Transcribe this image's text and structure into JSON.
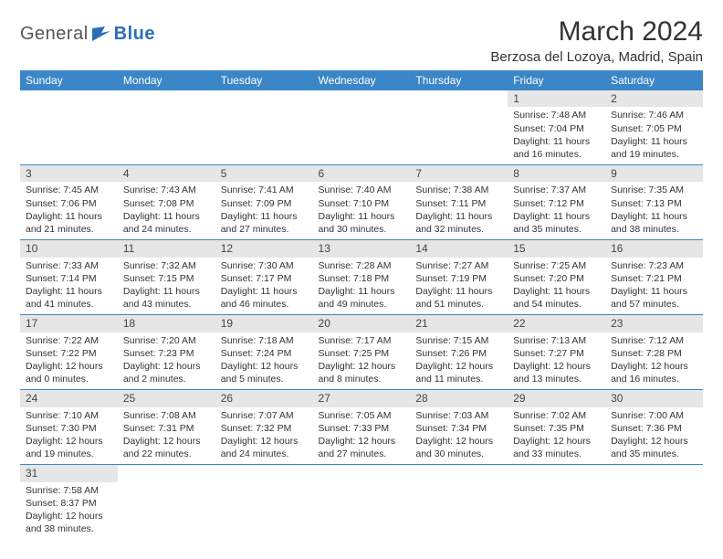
{
  "logo": {
    "part1": "General",
    "part2": "Blue"
  },
  "title": "March 2024",
  "location": "Berzosa del Lozoya, Madrid, Spain",
  "colors": {
    "header_bg": "#3b86c7",
    "header_text": "#ffffff",
    "daynum_bg": "#e6e6e6",
    "border": "#3b86c7",
    "logo_gray": "#555555",
    "logo_blue": "#2a6fb5"
  },
  "weekdays": [
    "Sunday",
    "Monday",
    "Tuesday",
    "Wednesday",
    "Thursday",
    "Friday",
    "Saturday"
  ],
  "weeks": [
    [
      null,
      null,
      null,
      null,
      null,
      {
        "n": "1",
        "sr": "Sunrise: 7:48 AM",
        "ss": "Sunset: 7:04 PM",
        "dl": "Daylight: 11 hours and 16 minutes."
      },
      {
        "n": "2",
        "sr": "Sunrise: 7:46 AM",
        "ss": "Sunset: 7:05 PM",
        "dl": "Daylight: 11 hours and 19 minutes."
      }
    ],
    [
      {
        "n": "3",
        "sr": "Sunrise: 7:45 AM",
        "ss": "Sunset: 7:06 PM",
        "dl": "Daylight: 11 hours and 21 minutes."
      },
      {
        "n": "4",
        "sr": "Sunrise: 7:43 AM",
        "ss": "Sunset: 7:08 PM",
        "dl": "Daylight: 11 hours and 24 minutes."
      },
      {
        "n": "5",
        "sr": "Sunrise: 7:41 AM",
        "ss": "Sunset: 7:09 PM",
        "dl": "Daylight: 11 hours and 27 minutes."
      },
      {
        "n": "6",
        "sr": "Sunrise: 7:40 AM",
        "ss": "Sunset: 7:10 PM",
        "dl": "Daylight: 11 hours and 30 minutes."
      },
      {
        "n": "7",
        "sr": "Sunrise: 7:38 AM",
        "ss": "Sunset: 7:11 PM",
        "dl": "Daylight: 11 hours and 32 minutes."
      },
      {
        "n": "8",
        "sr": "Sunrise: 7:37 AM",
        "ss": "Sunset: 7:12 PM",
        "dl": "Daylight: 11 hours and 35 minutes."
      },
      {
        "n": "9",
        "sr": "Sunrise: 7:35 AM",
        "ss": "Sunset: 7:13 PM",
        "dl": "Daylight: 11 hours and 38 minutes."
      }
    ],
    [
      {
        "n": "10",
        "sr": "Sunrise: 7:33 AM",
        "ss": "Sunset: 7:14 PM",
        "dl": "Daylight: 11 hours and 41 minutes."
      },
      {
        "n": "11",
        "sr": "Sunrise: 7:32 AM",
        "ss": "Sunset: 7:15 PM",
        "dl": "Daylight: 11 hours and 43 minutes."
      },
      {
        "n": "12",
        "sr": "Sunrise: 7:30 AM",
        "ss": "Sunset: 7:17 PM",
        "dl": "Daylight: 11 hours and 46 minutes."
      },
      {
        "n": "13",
        "sr": "Sunrise: 7:28 AM",
        "ss": "Sunset: 7:18 PM",
        "dl": "Daylight: 11 hours and 49 minutes."
      },
      {
        "n": "14",
        "sr": "Sunrise: 7:27 AM",
        "ss": "Sunset: 7:19 PM",
        "dl": "Daylight: 11 hours and 51 minutes."
      },
      {
        "n": "15",
        "sr": "Sunrise: 7:25 AM",
        "ss": "Sunset: 7:20 PM",
        "dl": "Daylight: 11 hours and 54 minutes."
      },
      {
        "n": "16",
        "sr": "Sunrise: 7:23 AM",
        "ss": "Sunset: 7:21 PM",
        "dl": "Daylight: 11 hours and 57 minutes."
      }
    ],
    [
      {
        "n": "17",
        "sr": "Sunrise: 7:22 AM",
        "ss": "Sunset: 7:22 PM",
        "dl": "Daylight: 12 hours and 0 minutes."
      },
      {
        "n": "18",
        "sr": "Sunrise: 7:20 AM",
        "ss": "Sunset: 7:23 PM",
        "dl": "Daylight: 12 hours and 2 minutes."
      },
      {
        "n": "19",
        "sr": "Sunrise: 7:18 AM",
        "ss": "Sunset: 7:24 PM",
        "dl": "Daylight: 12 hours and 5 minutes."
      },
      {
        "n": "20",
        "sr": "Sunrise: 7:17 AM",
        "ss": "Sunset: 7:25 PM",
        "dl": "Daylight: 12 hours and 8 minutes."
      },
      {
        "n": "21",
        "sr": "Sunrise: 7:15 AM",
        "ss": "Sunset: 7:26 PM",
        "dl": "Daylight: 12 hours and 11 minutes."
      },
      {
        "n": "22",
        "sr": "Sunrise: 7:13 AM",
        "ss": "Sunset: 7:27 PM",
        "dl": "Daylight: 12 hours and 13 minutes."
      },
      {
        "n": "23",
        "sr": "Sunrise: 7:12 AM",
        "ss": "Sunset: 7:28 PM",
        "dl": "Daylight: 12 hours and 16 minutes."
      }
    ],
    [
      {
        "n": "24",
        "sr": "Sunrise: 7:10 AM",
        "ss": "Sunset: 7:30 PM",
        "dl": "Daylight: 12 hours and 19 minutes."
      },
      {
        "n": "25",
        "sr": "Sunrise: 7:08 AM",
        "ss": "Sunset: 7:31 PM",
        "dl": "Daylight: 12 hours and 22 minutes."
      },
      {
        "n": "26",
        "sr": "Sunrise: 7:07 AM",
        "ss": "Sunset: 7:32 PM",
        "dl": "Daylight: 12 hours and 24 minutes."
      },
      {
        "n": "27",
        "sr": "Sunrise: 7:05 AM",
        "ss": "Sunset: 7:33 PM",
        "dl": "Daylight: 12 hours and 27 minutes."
      },
      {
        "n": "28",
        "sr": "Sunrise: 7:03 AM",
        "ss": "Sunset: 7:34 PM",
        "dl": "Daylight: 12 hours and 30 minutes."
      },
      {
        "n": "29",
        "sr": "Sunrise: 7:02 AM",
        "ss": "Sunset: 7:35 PM",
        "dl": "Daylight: 12 hours and 33 minutes."
      },
      {
        "n": "30",
        "sr": "Sunrise: 7:00 AM",
        "ss": "Sunset: 7:36 PM",
        "dl": "Daylight: 12 hours and 35 minutes."
      }
    ],
    [
      {
        "n": "31",
        "sr": "Sunrise: 7:58 AM",
        "ss": "Sunset: 8:37 PM",
        "dl": "Daylight: 12 hours and 38 minutes."
      },
      null,
      null,
      null,
      null,
      null,
      null
    ]
  ]
}
